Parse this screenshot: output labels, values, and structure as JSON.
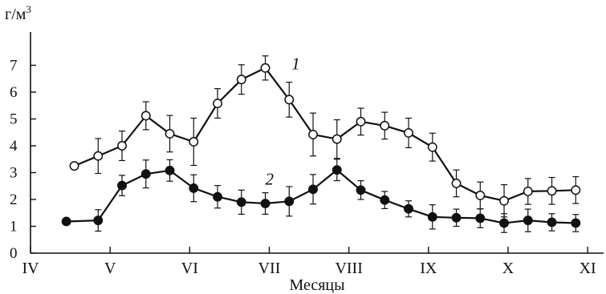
{
  "chart_data": {
    "type": "line",
    "xlabel": "Месяцы",
    "ylabel": "г/м3",
    "ylim": [
      0,
      7.9
    ],
    "yticks": [
      0,
      1,
      2,
      3,
      4,
      5,
      6,
      7
    ],
    "xlim": [
      4,
      11.2
    ],
    "xticks": [
      {
        "value": 4,
        "label": "IV"
      },
      {
        "value": 5,
        "label": "V"
      },
      {
        "value": 6,
        "label": "VI"
      },
      {
        "value": 7,
        "label": "VII"
      },
      {
        "value": 8,
        "label": "VIII"
      },
      {
        "value": 9,
        "label": "IX"
      },
      {
        "value": 10,
        "label": "X"
      },
      {
        "value": 11,
        "label": "XI"
      }
    ],
    "grid": false,
    "legend": "none",
    "series": [
      {
        "name": "1",
        "marker": "open-circle",
        "x": [
          4.55,
          4.85,
          5.15,
          5.45,
          5.75,
          6.05,
          6.35,
          6.65,
          6.95,
          7.25,
          7.55,
          7.85,
          8.15,
          8.45,
          8.75,
          9.05,
          9.35,
          9.65,
          9.95,
          10.25,
          10.55,
          10.85
        ],
        "y": [
          3.25,
          3.62,
          4.0,
          5.12,
          4.45,
          4.15,
          5.58,
          6.47,
          6.9,
          5.72,
          4.42,
          4.25,
          4.9,
          4.75,
          4.48,
          3.95,
          2.6,
          2.15,
          1.95,
          2.3,
          2.32,
          2.35
        ],
        "err": [
          0,
          0.65,
          0.55,
          0.52,
          0.68,
          0.88,
          0.55,
          0.55,
          0.45,
          0.65,
          0.8,
          0.72,
          0.5,
          0.5,
          0.55,
          0.52,
          0.5,
          0.5,
          0.6,
          0.48,
          0.5,
          0.5
        ]
      },
      {
        "name": "2",
        "marker": "filled-circle",
        "x": [
          4.45,
          4.85,
          5.15,
          5.45,
          5.75,
          6.05,
          6.35,
          6.65,
          6.95,
          7.25,
          7.55,
          7.85,
          8.15,
          8.45,
          8.75,
          9.05,
          9.35,
          9.65,
          9.95,
          10.25,
          10.55,
          10.85
        ],
        "y": [
          1.18,
          1.22,
          2.52,
          2.95,
          3.08,
          2.42,
          2.1,
          1.9,
          1.85,
          1.93,
          2.38,
          3.1,
          2.35,
          1.98,
          1.65,
          1.35,
          1.32,
          1.3,
          1.12,
          1.22,
          1.15,
          1.12
        ],
        "err": [
          0,
          0.4,
          0.38,
          0.52,
          0.4,
          0.5,
          0.42,
          0.45,
          0.4,
          0.55,
          0.55,
          0.4,
          0.35,
          0.32,
          0.3,
          0.45,
          0.32,
          0.35,
          0.35,
          0.42,
          0.32,
          0.32
        ]
      }
    ]
  }
}
